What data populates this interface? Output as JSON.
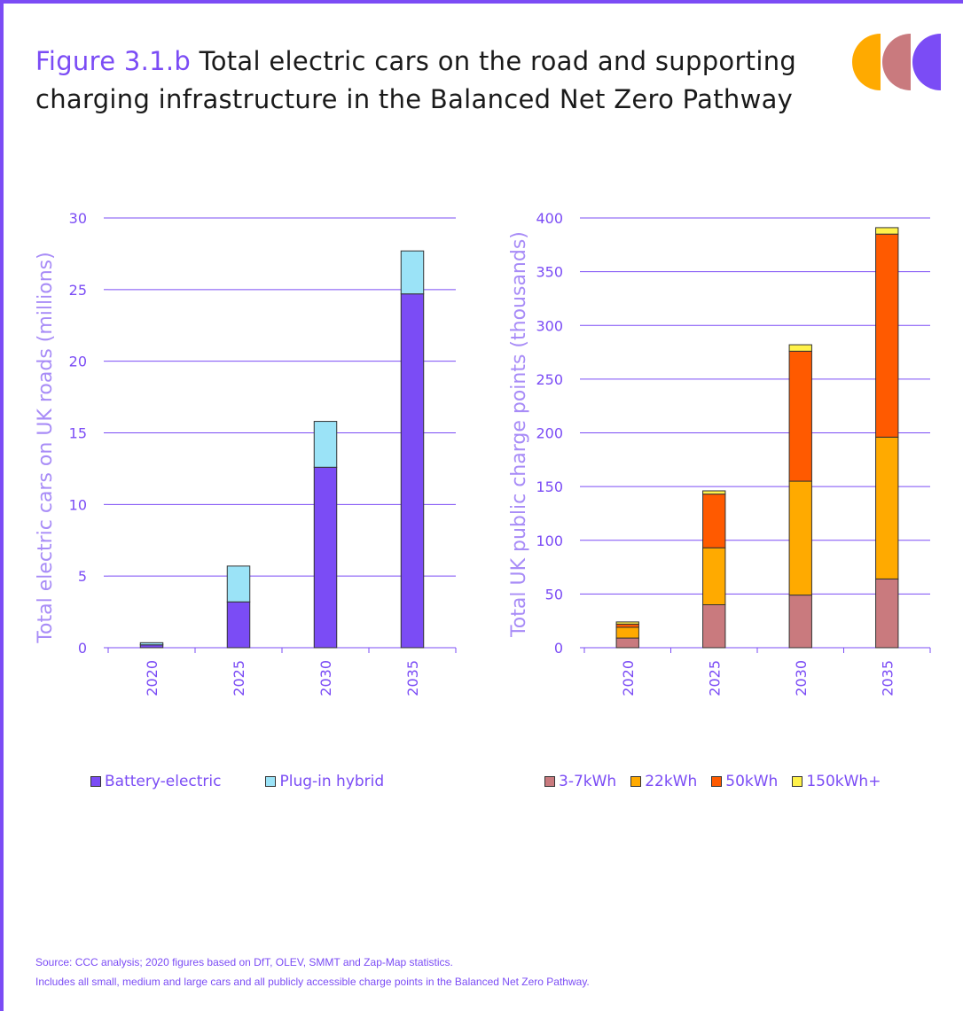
{
  "title": {
    "figure_label": "Figure 3.1.b",
    "text": " Total electric cars on the road and supporting charging infrastructure in the Balanced Net Zero Pathway"
  },
  "logo": {
    "colors": [
      "#FFAA00",
      "#C97A7E",
      "#7B4CF5"
    ]
  },
  "colors": {
    "accent": "#7B4CF5",
    "gridline": "#7B4CF5",
    "axis_title": "#A88CF7"
  },
  "chart_data": [
    {
      "type": "bar",
      "stacked": true,
      "ylabel": "Total electric cars on UK roads (millions)",
      "categories": [
        "2020",
        "2025",
        "2030",
        "2035"
      ],
      "ylim": [
        0,
        30
      ],
      "yticks": [
        0,
        5,
        10,
        15,
        20,
        25,
        30
      ],
      "grid": true,
      "legend_position": "bottom",
      "series": [
        {
          "name": "Battery-electric",
          "color": "#7B4CF5",
          "values": [
            0.2,
            3.2,
            12.6,
            24.7
          ]
        },
        {
          "name": "Plug-in hybrid",
          "color": "#9BE3F7",
          "values": [
            0.15,
            2.5,
            3.2,
            3.0
          ]
        }
      ]
    },
    {
      "type": "bar",
      "stacked": true,
      "ylabel": "Total UK public charge points (thousands)",
      "categories": [
        "2020",
        "2025",
        "2030",
        "2035"
      ],
      "ylim": [
        0,
        400
      ],
      "yticks": [
        0,
        50,
        100,
        150,
        200,
        250,
        300,
        350,
        400
      ],
      "grid": true,
      "legend_position": "bottom",
      "series": [
        {
          "name": "3-7kWh",
          "color": "#C97A7E",
          "values": [
            9,
            40,
            49,
            64
          ]
        },
        {
          "name": "22kWh",
          "color": "#FFAA00",
          "values": [
            10,
            53,
            106,
            132
          ]
        },
        {
          "name": "50kWh",
          "color": "#FF5A00",
          "values": [
            3,
            50,
            121,
            189
          ]
        },
        {
          "name": "150kWh+",
          "color": "#FFF24A",
          "values": [
            2,
            3,
            6,
            6
          ]
        }
      ]
    }
  ],
  "source": {
    "line1": "Source: CCC analysis; 2020 figures based on DfT, OLEV, SMMT and Zap-Map statistics.",
    "line2": "Includes all small, medium and large cars and all publicly accessible charge points in the Balanced Net Zero Pathway."
  }
}
